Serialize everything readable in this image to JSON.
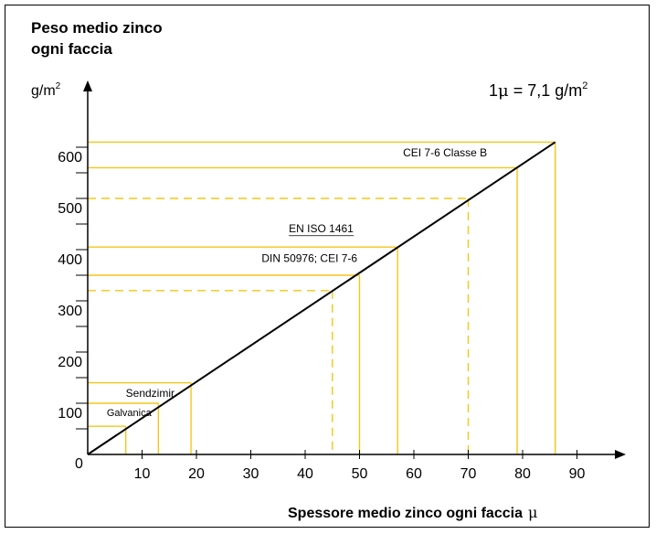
{
  "chart_data": {
    "type": "line",
    "title_line1": "Peso medio zinco",
    "title_line2": "ogni faccia",
    "ylabel": "g/m",
    "ylabel_sup": "2",
    "xlabel": "Spessore medio zinco ogni faccia",
    "xlabel_unit": "μ",
    "formula": {
      "prefix": "1",
      "mu": "μ",
      "rest": " = 7,1 g/m",
      "sup": "2"
    },
    "origin_label": "0",
    "xlim": [
      0,
      90
    ],
    "ylim": [
      0,
      600
    ],
    "x_ticks": [
      10,
      20,
      30,
      40,
      50,
      60,
      70,
      80,
      90
    ],
    "y_ticks": [
      100,
      200,
      300,
      400,
      500,
      600
    ],
    "line": {
      "x": [
        0,
        86
      ],
      "y": [
        0,
        610
      ]
    },
    "colors": {
      "accent": "#F5C518",
      "line": "#000000"
    },
    "standards": [
      {
        "label": "CEI 7-6 Classe B",
        "x": [
          79,
          86
        ],
        "y": [
          560,
          610
        ],
        "dashed": false,
        "label_x": 58,
        "label_y": 588
      },
      {
        "label": "EN ISO 1461",
        "x": [
          70
        ],
        "y": [
          500
        ],
        "dashed": true,
        "label_x": 37,
        "label_y": 440
      },
      {
        "label": "DIN 50976; CEI 7-6",
        "x": [
          50,
          57
        ],
        "y": [
          350,
          405
        ],
        "dashed": false,
        "label_x": 32,
        "label_y": 382
      },
      {
        "label": "",
        "x": [
          45
        ],
        "y": [
          320
        ],
        "dashed": true
      },
      {
        "label": "Sendzimir",
        "x": [
          19
        ],
        "y": [
          140
        ],
        "dashed": false,
        "label_x": 7,
        "label_y": 118
      },
      {
        "label": "Galvanica",
        "x": [
          7,
          13
        ],
        "y": [
          55,
          100
        ],
        "dashed": false,
        "label_x": 3.5,
        "label_y": 80
      }
    ]
  }
}
